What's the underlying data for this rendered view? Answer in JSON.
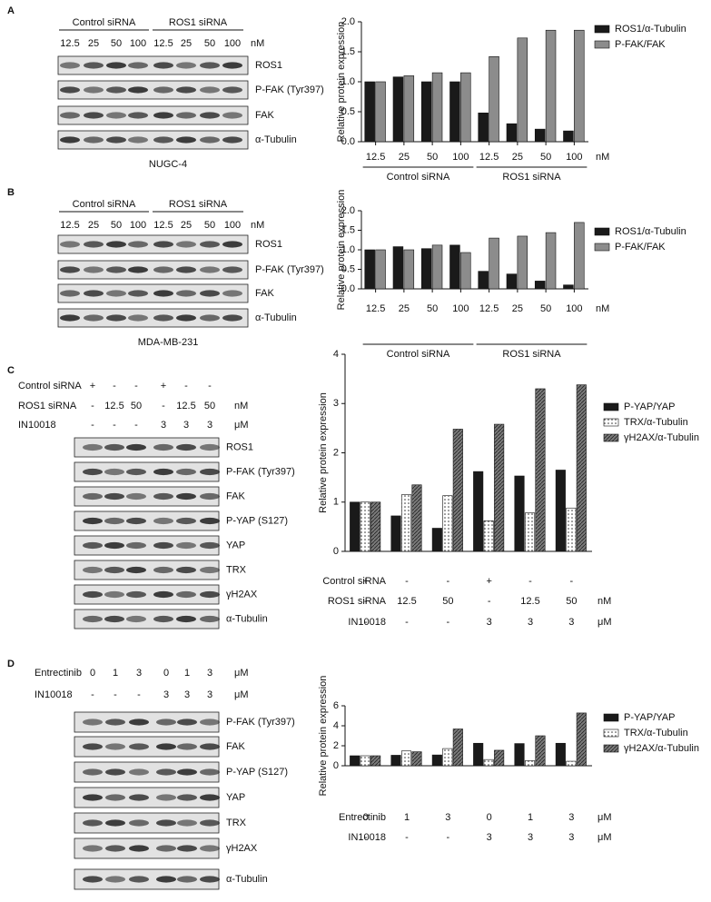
{
  "panels": [
    {
      "label": "A",
      "header": {
        "groups": [
          {
            "name": "Control siRNA",
            "lanes": [
              "12.5",
              "25",
              "50",
              "100"
            ]
          },
          {
            "name": "ROS1 siRNA",
            "lanes": [
              "12.5",
              "25",
              "50",
              "100"
            ]
          }
        ],
        "unit": "nM"
      },
      "blots": [
        "ROS1",
        "P-FAK (Tyr397)",
        "FAK",
        "α-Tubulin"
      ],
      "cell_line": "NUGC-4"
    },
    {
      "label": "B",
      "header": {
        "groups": [
          {
            "name": "Control siRNA",
            "lanes": [
              "12.5",
              "25",
              "50",
              "100"
            ]
          },
          {
            "name": "ROS1 siRNA",
            "lanes": [
              "12.5",
              "25",
              "50",
              "100"
            ]
          }
        ],
        "unit": "nM"
      },
      "blots": [
        "ROS1",
        "P-FAK (Tyr397)",
        "FAK",
        "α-Tubulin"
      ],
      "cell_line": "MDA-MB-231"
    },
    {
      "label": "C",
      "rows": [
        {
          "label": "Control siRNA",
          "values": [
            "+",
            "-",
            "-",
            "+",
            "-",
            "-"
          ]
        },
        {
          "label": "ROS1 siRNA",
          "values": [
            "-",
            "12.5",
            "50",
            "-",
            "12.5",
            "50"
          ],
          "unit": "nM"
        },
        {
          "label": "IN10018",
          "values": [
            "-",
            "-",
            "-",
            "3",
            "3",
            "3"
          ],
          "unit": "μM"
        }
      ],
      "blots": [
        "ROS1",
        "P-FAK (Tyr397)",
        "FAK",
        "P-YAP (S127)",
        "YAP",
        "TRX",
        "γH2AX",
        "α-Tubulin"
      ]
    },
    {
      "label": "D",
      "rows": [
        {
          "label": "Entrectinib",
          "values": [
            "0",
            "1",
            "3",
            "0",
            "1",
            "3"
          ],
          "unit": "μM"
        },
        {
          "label": "IN10018",
          "values": [
            "-",
            "-",
            "-",
            "3",
            "3",
            "3"
          ],
          "unit": "μM"
        }
      ],
      "blots": [
        "P-FAK (Tyr397)",
        "FAK",
        "P-YAP (S127)",
        "YAP",
        "TRX",
        "γH2AX",
        "α-Tubulin"
      ]
    }
  ],
  "chart_data": [
    {
      "type": "bar",
      "y_label": "Relative protein expression",
      "groups": [
        {
          "name": "Control siRNA",
          "categories": [
            "12.5",
            "25",
            "50",
            "100"
          ]
        },
        {
          "name": "ROS1 siRNA",
          "categories": [
            "12.5",
            "25",
            "50",
            "100"
          ]
        }
      ],
      "unit": "nM",
      "series": [
        {
          "name": "ROS1/α-Tubulin",
          "color": "#1a1a1a",
          "values": [
            1.0,
            1.08,
            1.0,
            1.0,
            0.48,
            0.3,
            0.21,
            0.18
          ]
        },
        {
          "name": "P-FAK/FAK",
          "color": "#8c8c8c",
          "values": [
            1.0,
            1.1,
            1.15,
            1.15,
            1.42,
            1.73,
            1.86,
            1.86
          ]
        }
      ],
      "ylim": [
        0,
        2
      ],
      "yticks": [
        {
          "value": 0,
          "label": "0.0"
        },
        0.5,
        {
          "value": 1,
          "label": "1.0"
        },
        1.5,
        {
          "value": 2,
          "label": "2.0"
        }
      ]
    },
    {
      "type": "bar",
      "y_label": "Relative protein expression",
      "groups": [
        {
          "name": "Control siRNA",
          "categories": [
            "12.5",
            "25",
            "50",
            "100"
          ]
        },
        {
          "name": "ROS1 siRNA",
          "categories": [
            "12.5",
            "25",
            "50",
            "100"
          ]
        }
      ],
      "unit": "nM",
      "series": [
        {
          "name": "ROS1/α-Tubulin",
          "color": "#1a1a1a",
          "values": [
            1.0,
            1.08,
            1.03,
            1.12,
            0.45,
            0.38,
            0.2,
            0.1
          ]
        },
        {
          "name": "P-FAK/FAK",
          "color": "#8c8c8c",
          "values": [
            1.0,
            1.0,
            1.12,
            0.93,
            1.3,
            1.35,
            1.44,
            1.7
          ]
        }
      ],
      "ylim": [
        0,
        2
      ],
      "yticks": [
        {
          "value": 0,
          "label": "0.0"
        },
        0.5,
        {
          "value": 1,
          "label": "1.0"
        },
        1.5,
        {
          "value": 2,
          "label": "2.0"
        }
      ]
    },
    {
      "type": "bar",
      "y_label": "Relative protein expression",
      "rows": [
        {
          "label": "Control siRNA",
          "values": [
            "+",
            "-",
            "-",
            "+",
            "-",
            "-"
          ]
        },
        {
          "label": "ROS1 siRNA",
          "values": [
            "-",
            "12.5",
            "50",
            "-",
            "12.5",
            "50"
          ],
          "unit": "nM"
        },
        {
          "label": "IN10018",
          "values": [
            "-",
            "-",
            "-",
            "3",
            "3",
            "3"
          ],
          "unit": "μM"
        }
      ],
      "series": [
        {
          "name": "P-YAP/YAP",
          "color": "#1a1a1a",
          "values": [
            1.0,
            0.72,
            0.47,
            1.62,
            1.53,
            1.65
          ]
        },
        {
          "name": "TRX/α-Tubulin",
          "color": "#ffffff",
          "hatch": "dots",
          "values": [
            1.0,
            1.15,
            1.13,
            0.62,
            0.78,
            0.88
          ]
        },
        {
          "name": "γH2AX/α-Tubulin",
          "color": "#7a7a7a",
          "hatch": "diagonal",
          "values": [
            1.0,
            1.35,
            2.48,
            2.58,
            3.3,
            3.38
          ]
        }
      ],
      "ylim": [
        0,
        4
      ],
      "yticks": [
        0,
        1,
        2,
        3,
        4
      ]
    },
    {
      "type": "bar",
      "y_label": "Relative protein expression",
      "rows": [
        {
          "label": "Entrectinib",
          "values": [
            "0",
            "1",
            "3",
            "0",
            "1",
            "3"
          ],
          "unit": "μM"
        },
        {
          "label": "IN10018",
          "values": [
            "-",
            "-",
            "-",
            "3",
            "3",
            "3"
          ],
          "unit": "μM"
        }
      ],
      "series": [
        {
          "name": "P-YAP/YAP",
          "color": "#1a1a1a",
          "values": [
            1.0,
            1.05,
            1.08,
            2.25,
            2.22,
            2.25
          ]
        },
        {
          "name": "TRX/α-Tubulin",
          "color": "#ffffff",
          "hatch": "dots",
          "values": [
            1.0,
            1.48,
            1.72,
            0.62,
            0.5,
            0.45
          ]
        },
        {
          "name": "γH2AX/α-Tubulin",
          "color": "#7a7a7a",
          "hatch": "diagonal",
          "values": [
            1.0,
            1.4,
            3.68,
            1.55,
            3.0,
            5.28
          ]
        }
      ],
      "ylim": [
        0,
        6
      ],
      "yticks": [
        0,
        2,
        4,
        6
      ]
    }
  ]
}
